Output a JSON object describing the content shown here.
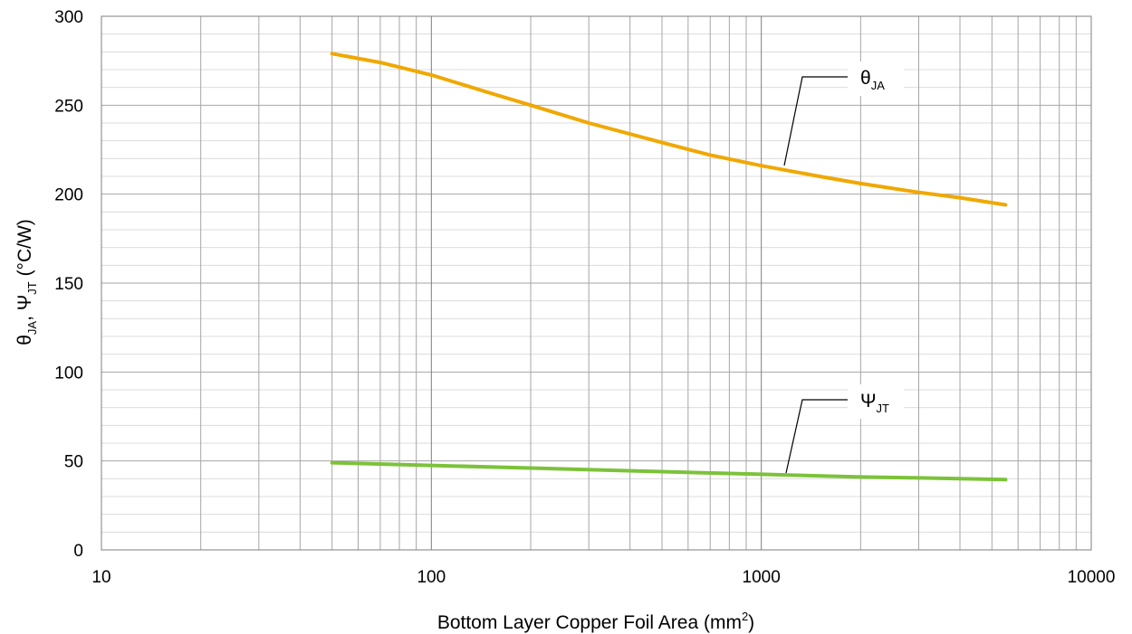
{
  "chart_data": {
    "type": "line",
    "title": "",
    "x_scale": "log",
    "xlim": [
      10,
      10000
    ],
    "ylim": [
      0,
      300
    ],
    "x_ticks": [
      10,
      100,
      1000,
      10000
    ],
    "x_tick_labels": [
      "10",
      "100",
      "1000",
      "10000"
    ],
    "y_ticks": [
      0,
      50,
      100,
      150,
      200,
      250,
      300
    ],
    "y_tick_labels": [
      "0",
      "50",
      "100",
      "150",
      "200",
      "250",
      "300"
    ],
    "grid": true,
    "xlabel": {
      "text": "Bottom Layer Copper Foil Area (mm",
      "sup": "2",
      "suffix": ")"
    },
    "ylabel": {
      "theta": "θ",
      "theta_sub": "JA",
      "sep": ", ",
      "psi": "Ψ",
      "psi_sub": "JT",
      "unit": "  (°C/W)"
    },
    "series": [
      {
        "name": "θJA",
        "label_main": "θ",
        "label_sub": "JA",
        "color": "#f0a800",
        "x": [
          50,
          70,
          100,
          150,
          200,
          300,
          500,
          700,
          1000,
          1500,
          2000,
          3000,
          4000,
          5500
        ],
        "y": [
          279,
          274,
          267,
          257,
          250,
          240,
          229,
          222,
          216,
          210,
          206,
          201,
          198,
          194
        ]
      },
      {
        "name": "ΨJT",
        "label_main": "Ψ",
        "label_sub": "JT",
        "color": "#7cc23a",
        "x": [
          50,
          100,
          200,
          500,
          1000,
          2000,
          3000,
          5500
        ],
        "y": [
          49,
          47.5,
          46,
          44,
          42.5,
          41,
          40.5,
          39.5
        ]
      }
    ]
  }
}
